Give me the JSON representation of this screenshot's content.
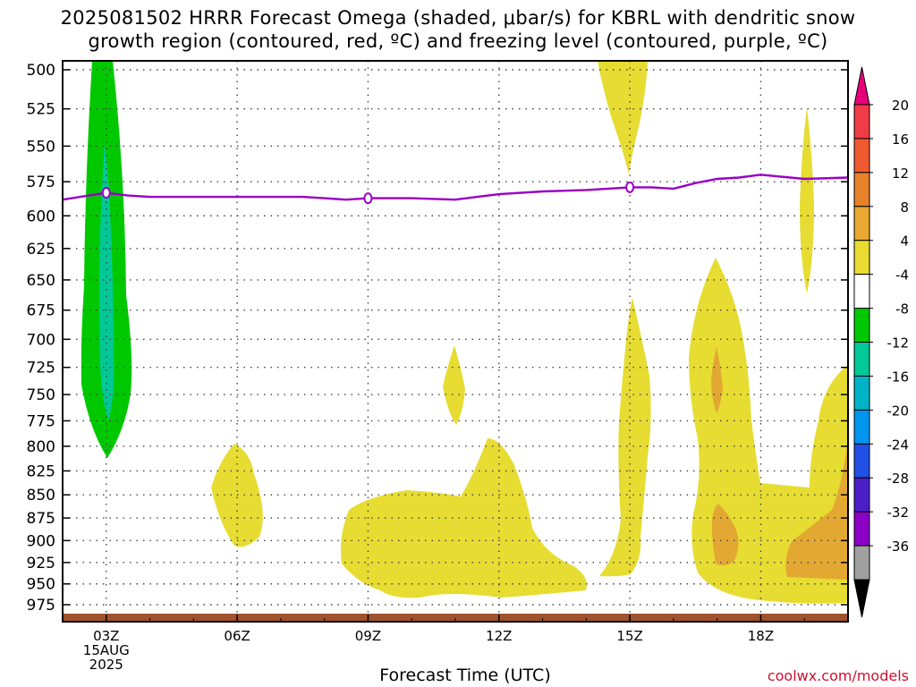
{
  "title": {
    "line1": "2025081502 HRRR Forecast Omega (shaded, μbar/s) for KBRL with dendritic snow",
    "line2": "growth region (contoured, red, ºC) and freezing level (contoured, purple, ºC)"
  },
  "credit": "coolwx.com/models",
  "chart_data": {
    "type": "heatmap",
    "title": "2025081502 HRRR Forecast Omega (shaded, μbar/s) for KBRL with dendritic snow growth region (contoured, red, ºC) and freezing level (contoured, purple, ºC)",
    "xlabel": "Forecast Time (UTC)",
    "ylabel": "",
    "y_ticks": [
      "500",
      "525",
      "550",
      "575",
      "600",
      "625",
      "650",
      "675",
      "700",
      "725",
      "750",
      "775",
      "800",
      "825",
      "850",
      "875",
      "900",
      "925",
      "950",
      "975"
    ],
    "x_ticks": [
      "03Z",
      "06Z",
      "09Z",
      "12Z",
      "15Z",
      "18Z"
    ],
    "x_sub_labels": [
      "15AUG",
      "2025"
    ],
    "x_range_hours": [
      2,
      20
    ],
    "y_range_hpa": [
      500,
      975
    ],
    "y_scale": "log-pressure",
    "grid": true,
    "colorbar": {
      "labels": [
        "20",
        "16",
        "12",
        "8",
        "4",
        "-4",
        "-8",
        "-12",
        "-16",
        "-20",
        "-24",
        "-28",
        "-32",
        "-36"
      ],
      "colors": [
        "#e8007a",
        "#f03c46",
        "#f05a30",
        "#e8822a",
        "#e8a832",
        "#e8dc32",
        "#ffffff",
        "#00c800",
        "#00c896",
        "#00b4c8",
        "#0096f0",
        "#2050e6",
        "#4c1ec8",
        "#8c00c8",
        "#a0a0a0",
        "#000000"
      ]
    },
    "series": [
      {
        "name": "freezing level",
        "color": "#9a00c4",
        "x_hours": [
          2.0,
          3.0,
          3.5,
          4.0,
          5.0,
          6.0,
          7.0,
          7.5,
          8.0,
          8.5,
          9.0,
          10.0,
          11.0,
          11.5,
          12.0,
          13.0,
          14.0,
          14.5,
          15.0,
          15.5,
          16.0,
          16.5,
          17.0,
          17.5,
          18.0,
          19.0,
          20.0
        ],
        "y_hpa": [
          588,
          583,
          585,
          586,
          586,
          586,
          586,
          586,
          587,
          588,
          587,
          587,
          588,
          586,
          584,
          582,
          581,
          580,
          579,
          579,
          580,
          576,
          573,
          572,
          570,
          573,
          572
        ],
        "contour_label": "0"
      }
    ],
    "shaded_regions": [
      {
        "value": "-8 to -4",
        "color": "#00c800",
        "hours": [
          2.4,
          3.6
        ],
        "hpa": [
          500,
          808
        ]
      },
      {
        "value": "-12 to -8",
        "color": "#00c896",
        "hours": [
          2.9,
          3.1
        ],
        "hpa": [
          560,
          780
        ]
      },
      {
        "value": "4 to 8",
        "color": "#e6dc32",
        "note": "weak ascent patches near 06Z, 11Z, 12Z, 14Z-15Z, 16Z-20Z"
      },
      {
        "value": "8 to 12",
        "color": "#e2a832",
        "note": "patches near 17Z and 19Z-20Z, 880-950 hPa"
      }
    ]
  }
}
